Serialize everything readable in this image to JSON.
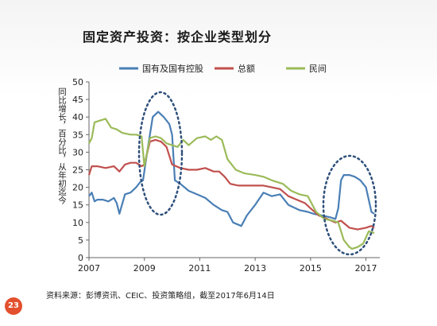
{
  "page": {
    "title": "固定资产投资：按企业类型划分",
    "source": "资料来源：彭博资讯、CEIC、投资策略组，截至2017年6月14日",
    "page_number": "23"
  },
  "chart_data": {
    "type": "line",
    "title": "固定资产投资：按企业类型划分",
    "ylabel": "同比增长，百分比，从年初迄今",
    "xlabel": "",
    "ylim": [
      0,
      50
    ],
    "yticks": [
      0,
      5,
      10,
      15,
      20,
      25,
      30,
      35,
      40,
      45,
      50
    ],
    "xlim": [
      2007,
      2017.5
    ],
    "xticks": [
      2007,
      2009,
      2011,
      2013,
      2015,
      2017
    ],
    "legend_position": "top",
    "grid": false,
    "series": [
      {
        "name": "国有及国有控股",
        "color": "#4a7fb5",
        "x": [
          2007.0,
          2007.1,
          2007.2,
          2007.3,
          2007.5,
          2007.7,
          2007.9,
          2008.0,
          2008.1,
          2008.3,
          2008.5,
          2008.7,
          2008.85,
          2008.95,
          2009.1,
          2009.2,
          2009.3,
          2009.5,
          2009.7,
          2009.9,
          2010.0,
          2010.1,
          2010.3,
          2010.6,
          2010.9,
          2011.2,
          2011.5,
          2011.8,
          2012.0,
          2012.2,
          2012.5,
          2012.7,
          2013.0,
          2013.3,
          2013.6,
          2013.9,
          2014.2,
          2014.6,
          2014.9,
          2015.1,
          2015.4,
          2015.7,
          2015.9,
          2016.0,
          2016.1,
          2016.2,
          2016.4,
          2016.6,
          2016.8,
          2017.0,
          2017.2,
          2017.3
        ],
        "y": [
          17.5,
          18.5,
          16.0,
          16.5,
          16.5,
          16.0,
          17.0,
          15.5,
          12.5,
          18.0,
          18.5,
          20.0,
          21.5,
          22.0,
          30.0,
          35.0,
          40.0,
          41.5,
          40.0,
          38.0,
          35.0,
          22.0,
          21.0,
          19.0,
          18.0,
          17.0,
          15.0,
          13.5,
          13.0,
          10.0,
          9.0,
          12.0,
          15.0,
          18.5,
          17.5,
          18.0,
          15.0,
          13.5,
          13.0,
          12.5,
          12.0,
          11.5,
          11.0,
          14.0,
          22.0,
          23.5,
          23.5,
          23.0,
          22.0,
          20.0,
          13.0,
          12.5
        ]
      },
      {
        "name": "总额",
        "color": "#c0504d",
        "x": [
          2007.0,
          2007.1,
          2007.3,
          2007.6,
          2007.9,
          2008.1,
          2008.3,
          2008.5,
          2008.7,
          2008.9,
          2009.0,
          2009.2,
          2009.4,
          2009.6,
          2009.8,
          2010.0,
          2010.3,
          2010.6,
          2010.9,
          2011.2,
          2011.5,
          2011.7,
          2011.9,
          2012.1,
          2012.4,
          2012.7,
          2013.0,
          2013.3,
          2013.6,
          2013.9,
          2014.2,
          2014.5,
          2014.8,
          2015.0,
          2015.3,
          2015.6,
          2015.9,
          2016.1,
          2016.4,
          2016.7,
          2017.0,
          2017.2,
          2017.3
        ],
        "y": [
          23.5,
          26.0,
          26.0,
          25.5,
          26.0,
          24.5,
          26.5,
          27.0,
          27.0,
          26.0,
          26.5,
          33.0,
          33.5,
          33.0,
          31.5,
          26.5,
          25.5,
          25.0,
          25.0,
          25.5,
          24.5,
          24.5,
          23.0,
          21.0,
          20.5,
          20.5,
          20.5,
          20.5,
          20.0,
          19.5,
          17.5,
          16.5,
          15.5,
          14.0,
          12.0,
          11.0,
          10.0,
          10.5,
          8.5,
          8.0,
          8.5,
          9.0,
          8.5
        ]
      },
      {
        "name": "民间",
        "color": "#9bbb59",
        "x": [
          2007.0,
          2007.1,
          2007.2,
          2007.4,
          2007.6,
          2007.8,
          2008.0,
          2008.2,
          2008.5,
          2008.7,
          2008.9,
          2009.0,
          2009.2,
          2009.4,
          2009.6,
          2009.8,
          2010.0,
          2010.2,
          2010.4,
          2010.6,
          2010.9,
          2011.2,
          2011.4,
          2011.6,
          2011.8,
          2012.0,
          2012.3,
          2012.6,
          2013.0,
          2013.3,
          2013.6,
          2014.0,
          2014.3,
          2014.6,
          2014.9,
          2015.2,
          2015.5,
          2015.8,
          2016.0,
          2016.2,
          2016.4,
          2016.5,
          2016.7,
          2016.9,
          2017.1,
          2017.3
        ],
        "y": [
          32.5,
          34.0,
          38.5,
          39.0,
          39.5,
          37.0,
          36.5,
          35.5,
          35.0,
          35.0,
          34.5,
          26.0,
          34.0,
          34.5,
          34.0,
          32.5,
          32.0,
          31.5,
          33.5,
          32.0,
          34.0,
          34.5,
          33.5,
          34.5,
          33.5,
          28.0,
          25.0,
          24.0,
          23.5,
          23.0,
          22.0,
          21.0,
          19.0,
          18.0,
          17.5,
          13.0,
          11.0,
          10.5,
          10.0,
          5.0,
          3.0,
          2.5,
          3.0,
          4.0,
          7.5,
          7.0
        ]
      }
    ],
    "annotations": [
      {
        "type": "dashed-ellipse",
        "note": "highlight around 2009 peak"
      },
      {
        "type": "dashed-ellipse",
        "note": "highlight around 2016-2017"
      }
    ]
  }
}
